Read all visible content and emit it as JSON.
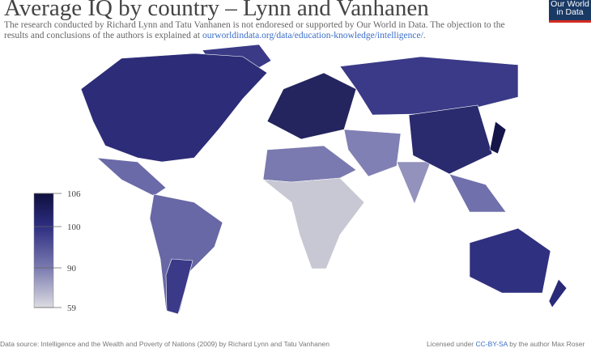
{
  "title": "Average IQ by country – Lynn and Vanhanen",
  "subtitle": {
    "text": "The research conducted by Richard Lynn and Tatu Vanhanen is not endoresed or supported by Our World in Data. The objection to the results and conclusions of the authors is explained at ",
    "link": "ourworldindata.org/data/education-knowledge/intelligence/",
    "end": "."
  },
  "logo": {
    "line1": "Our World",
    "line2": "in Data"
  },
  "legend": {
    "ticks": [
      106,
      100,
      90,
      59
    ],
    "colors": {
      "high": "#0f0f3e",
      "mid": "#2e2e82",
      "low": "#d6d6dc"
    }
  },
  "footer": {
    "source": "Data source: Intelligence and the Wealth and Poverty of Nations (2009) by Richard Lynn and Tatu Vanhanen",
    "license_prefix": "Licensed under ",
    "license_link": "CC-BY-SA",
    "license_suffix": " by the author Max Roser"
  }
}
